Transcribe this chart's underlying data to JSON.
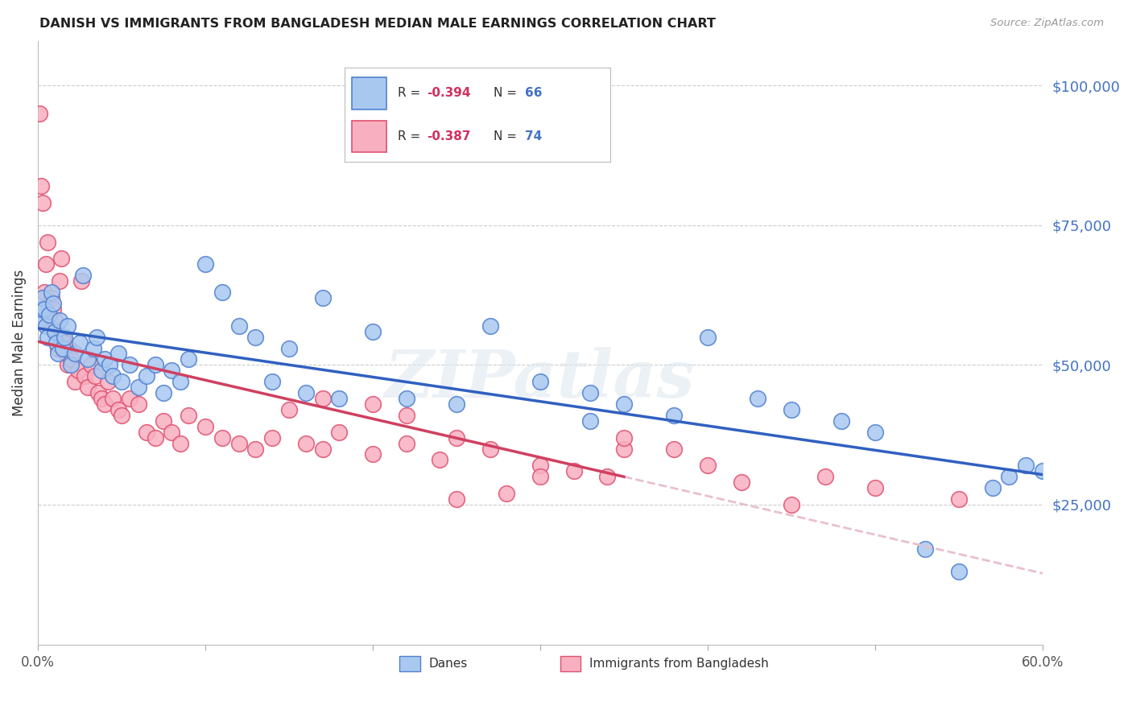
{
  "title": "DANISH VS IMMIGRANTS FROM BANGLADESH MEDIAN MALE EARNINGS CORRELATION CHART",
  "source": "Source: ZipAtlas.com",
  "ylabel": "Median Male Earnings",
  "ymin": 0,
  "ymax": 108000,
  "xmin": 0.0,
  "xmax": 0.6,
  "ytick_vals": [
    25000,
    50000,
    75000,
    100000
  ],
  "color_danes_face": "#a8c8f0",
  "color_danes_edge": "#5080d0",
  "color_bangladesh_face": "#f8b0c0",
  "color_bangladesh_edge": "#e05070",
  "color_danes_line": "#3060c0",
  "color_bangladesh_line_solid": "#d04060",
  "color_bangladesh_line_dash": "#e8c0cc",
  "watermark": "ZIPatlas",
  "legend_r1": "R = -0.394",
  "legend_n1": "N = 66",
  "legend_r2": "R = -0.387",
  "legend_n2": "N = 74",
  "legend_label1": "Danes",
  "legend_label2": "Immigrants from Bangladesh",
  "danes_x": [
    0.001,
    0.002,
    0.003,
    0.004,
    0.005,
    0.006,
    0.007,
    0.008,
    0.009,
    0.01,
    0.011,
    0.012,
    0.013,
    0.015,
    0.016,
    0.018,
    0.02,
    0.022,
    0.025,
    0.027,
    0.03,
    0.033,
    0.035,
    0.038,
    0.04,
    0.043,
    0.045,
    0.048,
    0.05,
    0.055,
    0.06,
    0.065,
    0.07,
    0.075,
    0.08,
    0.085,
    0.09,
    0.1,
    0.11,
    0.12,
    0.13,
    0.14,
    0.15,
    0.16,
    0.17,
    0.18,
    0.2,
    0.22,
    0.25,
    0.27,
    0.3,
    0.33,
    0.35,
    0.38,
    0.4,
    0.43,
    0.45,
    0.48,
    0.5,
    0.53,
    0.55,
    0.57,
    0.58,
    0.59,
    0.6,
    0.33
  ],
  "danes_y": [
    58000,
    60000,
    62000,
    60000,
    57000,
    55000,
    59000,
    63000,
    61000,
    56000,
    54000,
    52000,
    58000,
    53000,
    55000,
    57000,
    50000,
    52000,
    54000,
    66000,
    51000,
    53000,
    55000,
    49000,
    51000,
    50000,
    48000,
    52000,
    47000,
    50000,
    46000,
    48000,
    50000,
    45000,
    49000,
    47000,
    51000,
    68000,
    63000,
    57000,
    55000,
    47000,
    53000,
    45000,
    62000,
    44000,
    56000,
    44000,
    43000,
    57000,
    47000,
    45000,
    43000,
    41000,
    55000,
    44000,
    42000,
    40000,
    38000,
    17000,
    13000,
    28000,
    30000,
    32000,
    31000,
    40000
  ],
  "bangladesh_x": [
    0.001,
    0.002,
    0.003,
    0.004,
    0.005,
    0.006,
    0.007,
    0.008,
    0.009,
    0.01,
    0.011,
    0.012,
    0.013,
    0.014,
    0.015,
    0.016,
    0.017,
    0.018,
    0.019,
    0.02,
    0.022,
    0.024,
    0.026,
    0.028,
    0.03,
    0.032,
    0.034,
    0.036,
    0.038,
    0.04,
    0.042,
    0.045,
    0.048,
    0.05,
    0.055,
    0.06,
    0.065,
    0.07,
    0.075,
    0.08,
    0.085,
    0.09,
    0.1,
    0.11,
    0.12,
    0.13,
    0.14,
    0.15,
    0.16,
    0.17,
    0.18,
    0.2,
    0.22,
    0.24,
    0.25,
    0.27,
    0.3,
    0.32,
    0.34,
    0.35,
    0.17,
    0.2,
    0.22,
    0.3,
    0.35,
    0.38,
    0.4,
    0.42,
    0.45,
    0.47,
    0.5,
    0.55,
    0.25,
    0.28
  ],
  "bangladesh_y": [
    95000,
    82000,
    79000,
    63000,
    68000,
    72000,
    57000,
    62000,
    60000,
    58000,
    56000,
    53000,
    65000,
    69000,
    55000,
    54000,
    52000,
    50000,
    53000,
    51000,
    47000,
    49000,
    65000,
    48000,
    46000,
    50000,
    48000,
    45000,
    44000,
    43000,
    47000,
    44000,
    42000,
    41000,
    44000,
    43000,
    38000,
    37000,
    40000,
    38000,
    36000,
    41000,
    39000,
    37000,
    36000,
    35000,
    37000,
    42000,
    36000,
    35000,
    38000,
    34000,
    36000,
    33000,
    37000,
    35000,
    32000,
    31000,
    30000,
    35000,
    44000,
    43000,
    41000,
    30000,
    37000,
    35000,
    32000,
    29000,
    25000,
    30000,
    28000,
    26000,
    26000,
    27000
  ]
}
